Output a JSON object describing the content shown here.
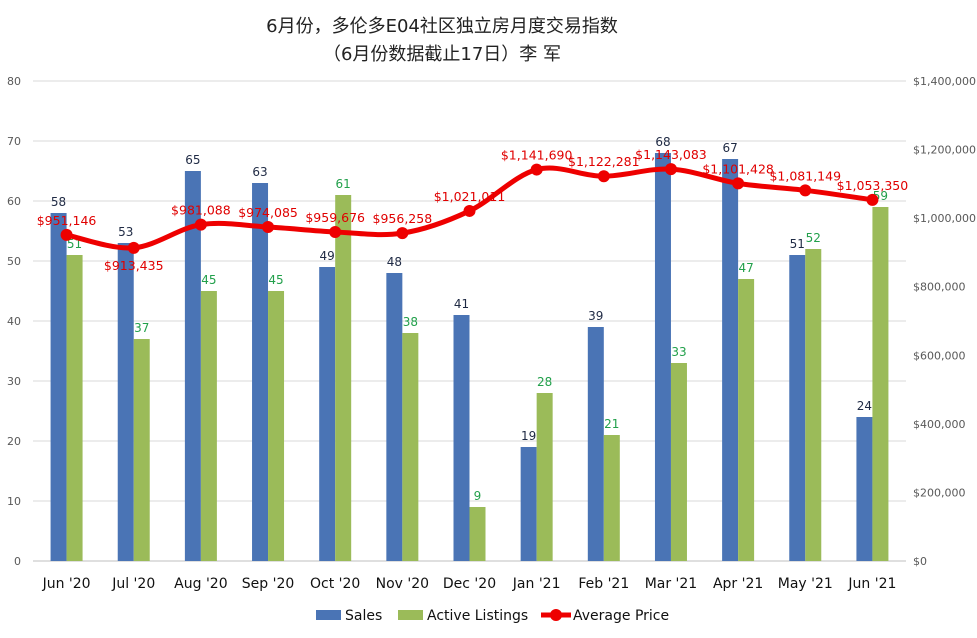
{
  "title_line1": "6月份，多伦多E04社区独立房月度交易指数",
  "title_line2": "（6月份数据截止17日）李 军",
  "colors": {
    "sales": "#4a74b5",
    "active": "#9bbb59",
    "price": "#ee0000",
    "grid": "#d9d9d9"
  },
  "chart_data": {
    "type": "bar",
    "categories": [
      "Jun '20",
      "Jul '20",
      "Aug '20",
      "Sep '20",
      "Oct '20",
      "Nov '20",
      "Dec '20",
      "Jan '21",
      "Feb '21",
      "Mar '21",
      "Apr '21",
      "May '21",
      "Jun '21"
    ],
    "series": [
      {
        "name": "Sales",
        "kind": "bar",
        "axis": "left",
        "values": [
          58,
          53,
          65,
          63,
          49,
          48,
          41,
          19,
          39,
          68,
          67,
          51,
          24
        ]
      },
      {
        "name": "Active Listings",
        "kind": "bar",
        "axis": "left",
        "values": [
          51,
          37,
          45,
          45,
          61,
          38,
          9,
          28,
          21,
          33,
          47,
          52,
          59
        ]
      },
      {
        "name": "Average Price",
        "kind": "line",
        "axis": "right",
        "values": [
          951146,
          913435,
          981088,
          974085,
          959676,
          956258,
          1021011,
          1141690,
          1122281,
          1143083,
          1101428,
          1081149,
          1053350
        ]
      }
    ],
    "price_labels": [
      "$951,146",
      "$913,435",
      "$981,088",
      "$974,085",
      "$959,676",
      "$956,258",
      "$1,021,011",
      "$1,141,690",
      "$1,122,281",
      "$1,143,083",
      "$1,101,428",
      "$1,081,149",
      "$1,053,350"
    ],
    "y_left": {
      "range": [
        0,
        80
      ],
      "ticks": [
        "0",
        "10",
        "20",
        "30",
        "40",
        "50",
        "60",
        "70",
        "80"
      ]
    },
    "y_right": {
      "range": [
        0,
        1400000
      ],
      "ticks": [
        "$0",
        "$200,000",
        "$400,000",
        "$600,000",
        "$800,000",
        "$1,000,000",
        "$1,200,000",
        "$1,400,000"
      ]
    },
    "grid": true,
    "legend": "bottom"
  }
}
